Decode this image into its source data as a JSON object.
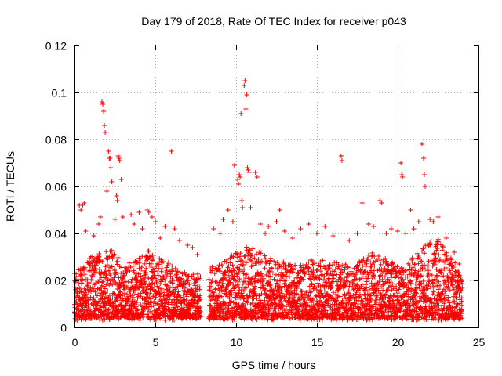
{
  "chart_data": {
    "type": "scatter",
    "title": "Day 179 of 2018, Rate Of TEC Index for receiver p043",
    "xlabel": "GPS time / hours",
    "ylabel": "ROTI / TECUs",
    "xlim": [
      0,
      25
    ],
    "ylim": [
      0,
      0.12
    ],
    "xticks": [
      0,
      5,
      10,
      15,
      20,
      25
    ],
    "xtick_labels": [
      "0",
      "5",
      "10",
      "15",
      "20",
      "25"
    ],
    "yticks": [
      0,
      0.02,
      0.04,
      0.06,
      0.08,
      0.1,
      0.12
    ],
    "ytick_labels": [
      "0",
      "0.02",
      "0.04",
      "0.06",
      "0.08",
      "0.1",
      "0.12"
    ],
    "grid": true,
    "marker": "+",
    "color": "#ff0000",
    "data_gap_hours": [
      7.8,
      8.3
    ],
    "series": [
      {
        "name": "ROTI",
        "points": [
          [
            0.0,
            0.023
          ],
          [
            0.3,
            0.052
          ],
          [
            0.4,
            0.05
          ],
          [
            0.5,
            0.052
          ],
          [
            0.6,
            0.053
          ],
          [
            0.7,
            0.041
          ],
          [
            1.0,
            0.03
          ],
          [
            1.2,
            0.039
          ],
          [
            1.5,
            0.044
          ],
          [
            1.6,
            0.047
          ],
          [
            1.7,
            0.096
          ],
          [
            1.75,
            0.095
          ],
          [
            1.8,
            0.092
          ],
          [
            1.85,
            0.086
          ],
          [
            1.9,
            0.083
          ],
          [
            2.0,
            0.058
          ],
          [
            2.1,
            0.075
          ],
          [
            2.15,
            0.072
          ],
          [
            2.2,
            0.072
          ],
          [
            2.25,
            0.068
          ],
          [
            2.3,
            0.062
          ],
          [
            2.5,
            0.046
          ],
          [
            2.6,
            0.056
          ],
          [
            2.65,
            0.054
          ],
          [
            2.7,
            0.073
          ],
          [
            2.75,
            0.072
          ],
          [
            2.8,
            0.071
          ],
          [
            2.9,
            0.063
          ],
          [
            3.0,
            0.047
          ],
          [
            3.5,
            0.048
          ],
          [
            3.7,
            0.044
          ],
          [
            4.0,
            0.049
          ],
          [
            4.2,
            0.042
          ],
          [
            4.5,
            0.05
          ],
          [
            4.6,
            0.049
          ],
          [
            4.8,
            0.047
          ],
          [
            5.0,
            0.045
          ],
          [
            5.3,
            0.038
          ],
          [
            5.6,
            0.043
          ],
          [
            6.0,
            0.075
          ],
          [
            6.2,
            0.042
          ],
          [
            6.5,
            0.037
          ],
          [
            7.0,
            0.035
          ],
          [
            7.3,
            0.034
          ],
          [
            7.6,
            0.031
          ],
          [
            8.6,
            0.042
          ],
          [
            9.0,
            0.04
          ],
          [
            9.2,
            0.046
          ],
          [
            9.5,
            0.05
          ],
          [
            9.8,
            0.045
          ],
          [
            9.9,
            0.069
          ],
          [
            10.1,
            0.063
          ],
          [
            10.15,
            0.061
          ],
          [
            10.2,
            0.065
          ],
          [
            10.25,
            0.064
          ],
          [
            10.3,
            0.091
          ],
          [
            10.35,
            0.054
          ],
          [
            10.4,
            0.051
          ],
          [
            10.5,
            0.103
          ],
          [
            10.55,
            0.105
          ],
          [
            10.6,
            0.093
          ],
          [
            10.65,
            0.099
          ],
          [
            10.7,
            0.068
          ],
          [
            10.75,
            0.067
          ],
          [
            10.8,
            0.066
          ],
          [
            10.9,
            0.051
          ],
          [
            11.2,
            0.066
          ],
          [
            11.3,
            0.064
          ],
          [
            11.5,
            0.044
          ],
          [
            11.8,
            0.04
          ],
          [
            12.0,
            0.043
          ],
          [
            12.5,
            0.045
          ],
          [
            12.7,
            0.05
          ],
          [
            13.0,
            0.041
          ],
          [
            13.5,
            0.038
          ],
          [
            14.0,
            0.042
          ],
          [
            14.5,
            0.044
          ],
          [
            15.0,
            0.04
          ],
          [
            15.5,
            0.043
          ],
          [
            16.0,
            0.039
          ],
          [
            16.5,
            0.073
          ],
          [
            16.55,
            0.071
          ],
          [
            17.0,
            0.037
          ],
          [
            17.5,
            0.04
          ],
          [
            17.8,
            0.053
          ],
          [
            18.2,
            0.044
          ],
          [
            18.5,
            0.043
          ],
          [
            18.9,
            0.054
          ],
          [
            19.0,
            0.053
          ],
          [
            19.3,
            0.04
          ],
          [
            19.6,
            0.042
          ],
          [
            20.0,
            0.041
          ],
          [
            20.2,
            0.07
          ],
          [
            20.25,
            0.065
          ],
          [
            20.3,
            0.064
          ],
          [
            20.5,
            0.04
          ],
          [
            20.8,
            0.05
          ],
          [
            21.0,
            0.042
          ],
          [
            21.3,
            0.045
          ],
          [
            21.5,
            0.078
          ],
          [
            21.6,
            0.072
          ],
          [
            21.65,
            0.065
          ],
          [
            21.7,
            0.06
          ],
          [
            22.0,
            0.046
          ],
          [
            22.2,
            0.045
          ],
          [
            22.5,
            0.047
          ],
          [
            23.0,
            0.038
          ],
          [
            23.5,
            0.032
          ],
          [
            23.8,
            0.027
          ]
        ],
        "band_profile": [
          [
            0.0,
            0.022
          ],
          [
            1.0,
            0.03
          ],
          [
            1.7,
            0.036
          ],
          [
            2.5,
            0.031
          ],
          [
            3.3,
            0.026
          ],
          [
            4.5,
            0.033
          ],
          [
            5.5,
            0.029
          ],
          [
            6.5,
            0.025
          ],
          [
            7.7,
            0.022
          ],
          [
            8.4,
            0.025
          ],
          [
            9.5,
            0.03
          ],
          [
            10.5,
            0.034
          ],
          [
            11.5,
            0.032
          ],
          [
            12.5,
            0.029
          ],
          [
            13.5,
            0.027
          ],
          [
            14.5,
            0.029
          ],
          [
            15.5,
            0.028
          ],
          [
            16.5,
            0.027
          ],
          [
            17.5,
            0.028
          ],
          [
            18.5,
            0.032
          ],
          [
            19.5,
            0.028
          ],
          [
            20.5,
            0.026
          ],
          [
            21.5,
            0.034
          ],
          [
            22.3,
            0.04
          ],
          [
            23.0,
            0.033
          ],
          [
            24.0,
            0.022
          ]
        ],
        "band_floor": 0.004
      }
    ]
  }
}
